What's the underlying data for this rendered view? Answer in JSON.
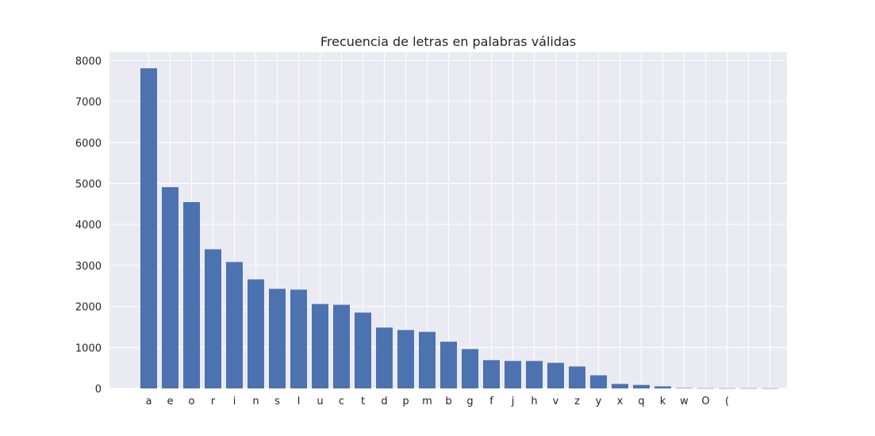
{
  "chart_data": {
    "type": "bar",
    "title": "Frecuencia de letras en palabras válidas",
    "xlabel": "",
    "ylabel": "",
    "categories": [
      "a",
      "e",
      "o",
      "r",
      "i",
      "n",
      "s",
      "l",
      "u",
      "c",
      "t",
      "d",
      "p",
      "m",
      "b",
      "g",
      "f",
      "j",
      "h",
      "v",
      "z",
      "y",
      "x",
      "q",
      "k",
      "w",
      "O",
      "(",
      "",
      ""
    ],
    "values": [
      7810,
      4910,
      4545,
      3395,
      3085,
      2660,
      2430,
      2410,
      2060,
      2040,
      1850,
      1485,
      1425,
      1380,
      1140,
      960,
      690,
      670,
      670,
      625,
      535,
      320,
      110,
      85,
      50,
      10,
      6,
      4,
      4,
      3
    ],
    "ylim": [
      0,
      8200
    ],
    "yticks": [
      0,
      1000,
      2000,
      3000,
      4000,
      5000,
      6000,
      7000,
      8000
    ],
    "grid": true,
    "colors": {
      "bar": "#4c72b0",
      "plot_background": "#eaeaf2",
      "grid": "#ffffff",
      "text": "#262626"
    }
  }
}
